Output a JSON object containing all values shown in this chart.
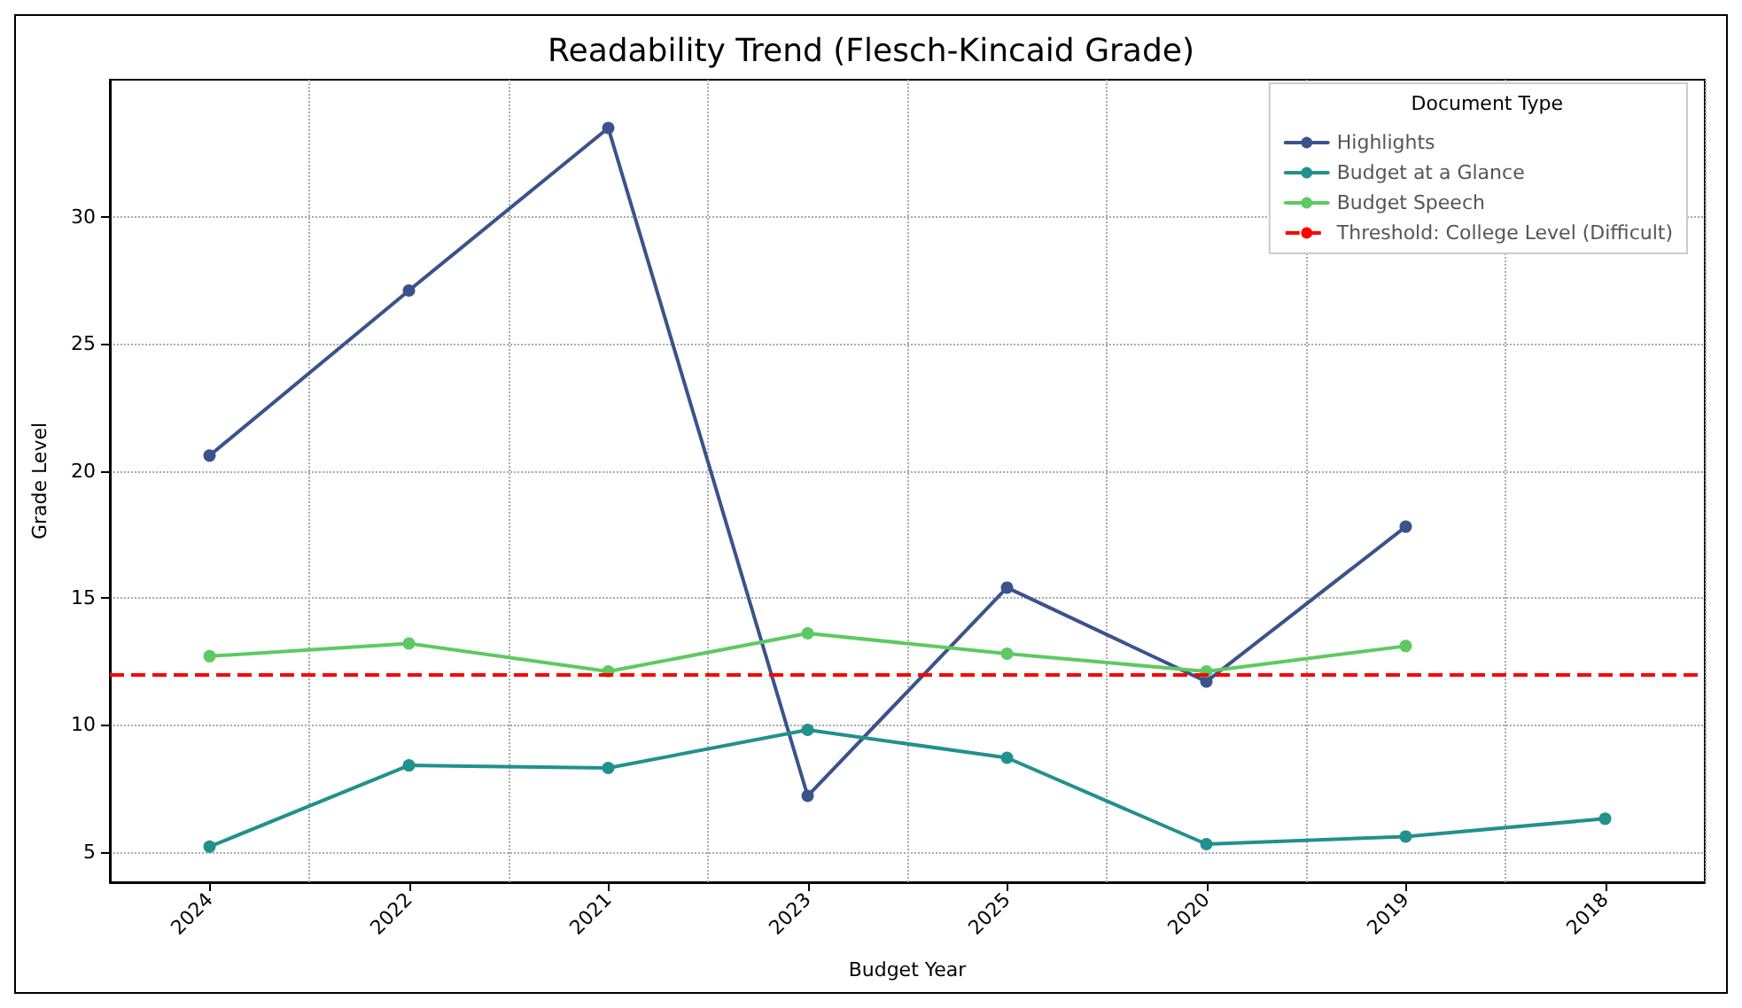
{
  "chart_data": {
    "type": "line",
    "title": "Readability Trend (Flesch-Kincaid Grade)",
    "xlabel": "Budget Year",
    "ylabel": "Grade Level",
    "legend_title": "Document Type",
    "categories": [
      "2024",
      "2022",
      "2021",
      "2023",
      "2025",
      "2020",
      "2019",
      "2018"
    ],
    "series": [
      {
        "name": "Highlights",
        "color": "#3b528b",
        "values": [
          20.6,
          27.1,
          33.5,
          7.2,
          15.4,
          11.7,
          17.8,
          null
        ]
      },
      {
        "name": "Budget at a Glance",
        "color": "#21918c",
        "values": [
          5.2,
          8.4,
          8.3,
          9.8,
          8.7,
          5.3,
          5.6,
          6.3
        ]
      },
      {
        "name": "Budget Speech",
        "color": "#5ec962",
        "values": [
          12.7,
          13.2,
          12.1,
          13.6,
          12.8,
          12.1,
          13.1,
          null
        ]
      }
    ],
    "ylim": [
      3.8,
      35.4
    ],
    "yticks": [
      5,
      10,
      15,
      20,
      25,
      30
    ],
    "ref_lines": [
      {
        "axis": "y",
        "value": 12,
        "label": "Threshold: College Level (Difficult)",
        "color": "#ff0000",
        "line_style": "dashed"
      }
    ],
    "grid": true,
    "legend": "top right",
    "marker": "circle",
    "line_style": "solid"
  }
}
